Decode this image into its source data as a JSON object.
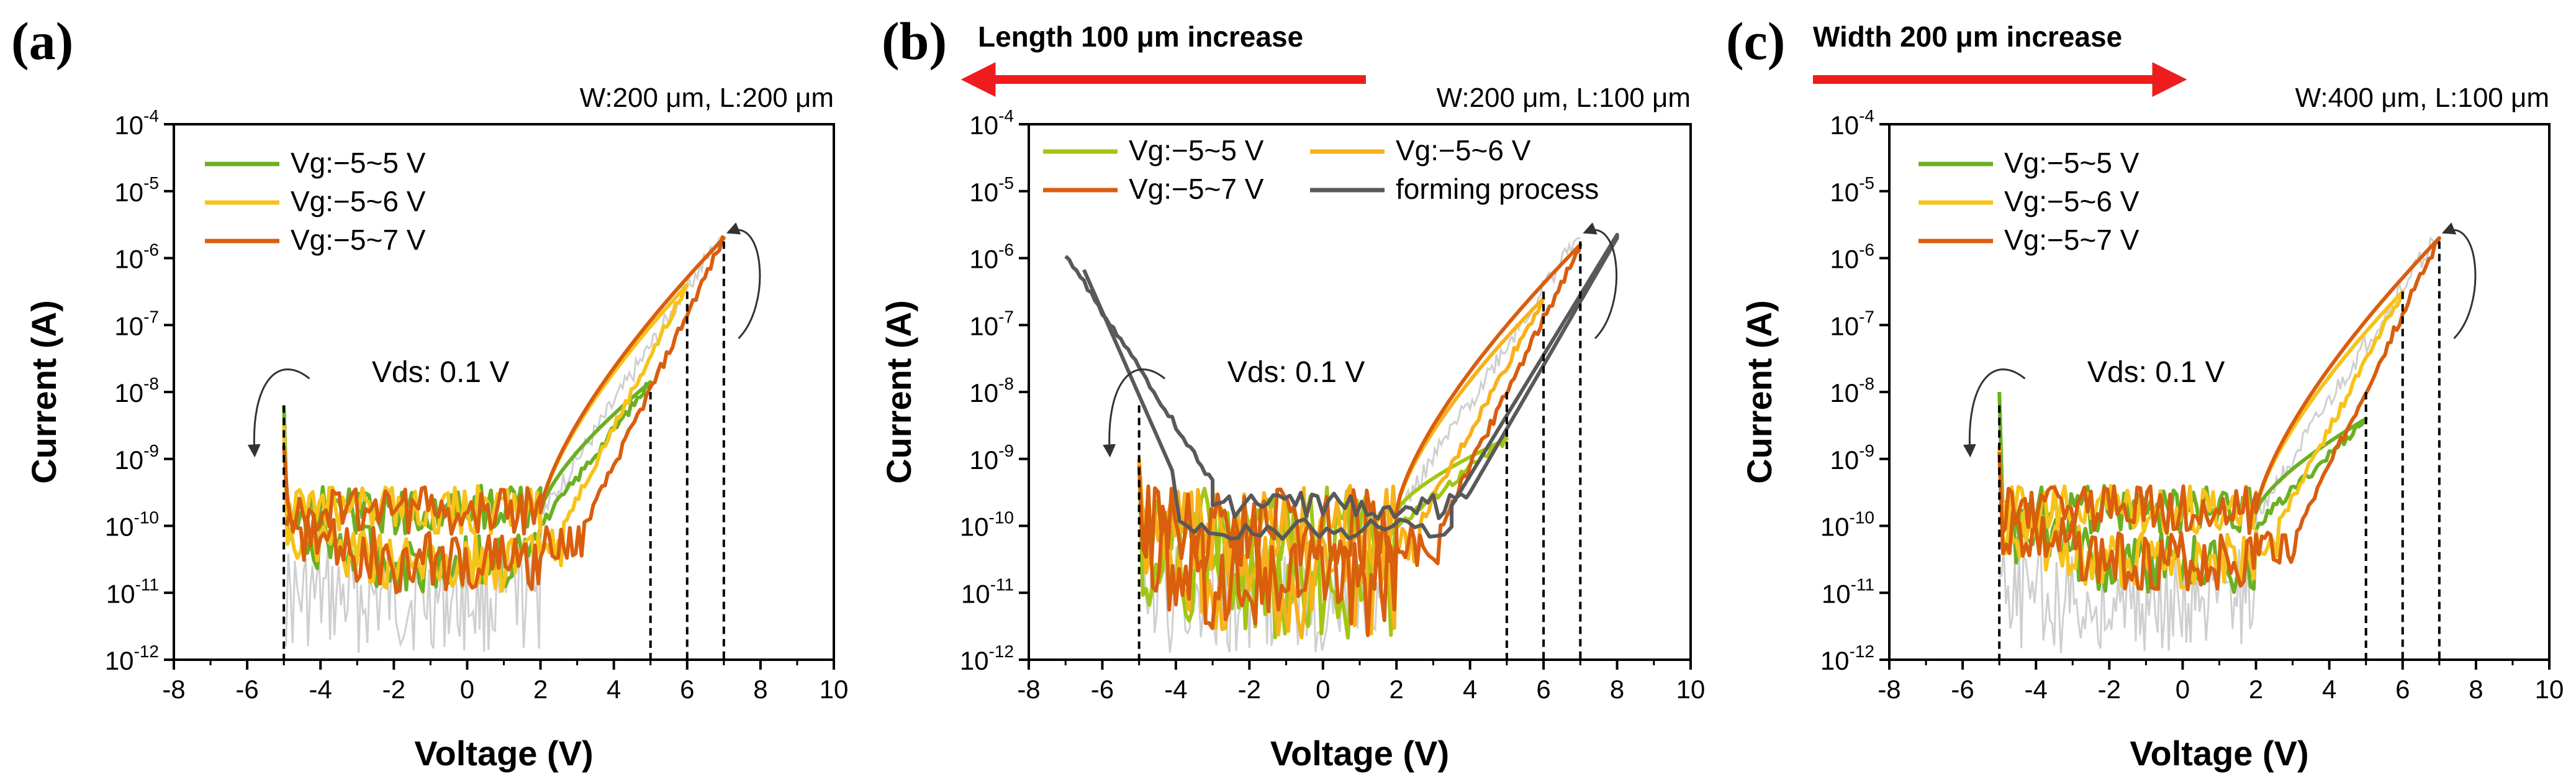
{
  "figure": {
    "arrows": [
      {
        "label": "Length 100 μm increase",
        "direction": "left",
        "color": "#ee1c1c"
      },
      {
        "label": "Width 200 μm increase",
        "direction": "right",
        "color": "#ee1c1c"
      }
    ]
  },
  "chart_data": [
    {
      "type": "line",
      "panel_label": "(a)",
      "condition": "W:200 μm, L:200 μm",
      "annotation": "Vds: 0.1 V",
      "xlabel": "Voltage (V)",
      "ylabel": "Current (A)",
      "xlim": [
        -8,
        10
      ],
      "ylim_exponent": [
        -12,
        -4
      ],
      "x_ticks": [
        -8,
        -6,
        -4,
        -2,
        0,
        2,
        4,
        6,
        8,
        10
      ],
      "y_ticks": [
        -12,
        -11,
        -10,
        -9,
        -8,
        -7,
        -6,
        -5,
        -4
      ],
      "y_tick_base": "10",
      "grid": false,
      "legend_position": "upper-left",
      "vlines": [
        -5,
        5,
        6,
        7
      ],
      "series": [
        {
          "name": "Vg:−5~5 V",
          "color": "#6ab023",
          "vmax": 5,
          "imax_exp": -7.85,
          "ineg_exp": -8.2
        },
        {
          "name": "Vg:−5~6 V",
          "color": "#f7c31a",
          "vmax": 6,
          "imax_exp": -6.4,
          "ineg_exp": -8.5
        },
        {
          "name": "Vg:−5~7 V",
          "color": "#d95e0e",
          "vmax": 7,
          "imax_exp": -5.7,
          "ineg_exp": -8.8
        }
      ]
    },
    {
      "type": "line",
      "panel_label": "(b)",
      "condition": "W:200 μm, L:100 μm",
      "annotation": "Vds: 0.1 V",
      "xlabel": "Voltage (V)",
      "ylabel": "Current (A)",
      "xlim": [
        -8,
        10
      ],
      "ylim_exponent": [
        -12,
        -4
      ],
      "x_ticks": [
        -8,
        -6,
        -4,
        -2,
        0,
        2,
        4,
        6,
        8,
        10
      ],
      "y_ticks": [
        -12,
        -11,
        -10,
        -9,
        -8,
        -7,
        -6,
        -5,
        -4
      ],
      "y_tick_base": "10",
      "grid": false,
      "legend_position": "upper-left",
      "vlines": [
        -5,
        5,
        6,
        7
      ],
      "series": [
        {
          "name": "Vg:−5~5 V",
          "color": "#a3c613",
          "vmax": 5,
          "imax_exp": -8.7,
          "ineg_exp": -9.0
        },
        {
          "name": "Vg:−5~6 V",
          "color": "#f7b21a",
          "vmax": 6,
          "imax_exp": -6.6,
          "ineg_exp": -9.0
        },
        {
          "name": "Vg:−5~7 V",
          "color": "#d95e0e",
          "vmax": 7,
          "imax_exp": -5.8,
          "ineg_exp": -9.1
        },
        {
          "name": "forming process",
          "color": "#595959",
          "vmax": 8,
          "imax_exp": -5.65,
          "ineg_exp": -5.9
        }
      ]
    },
    {
      "type": "line",
      "panel_label": "(c)",
      "condition": "W:400 μm, L:100 μm",
      "annotation": "Vds: 0.1 V",
      "xlabel": "Voltage (V)",
      "ylabel": "Current (A)",
      "xlim": [
        -8,
        10
      ],
      "ylim_exponent": [
        -12,
        -4
      ],
      "x_ticks": [
        -8,
        -6,
        -4,
        -2,
        0,
        2,
        4,
        6,
        8,
        10
      ],
      "y_ticks": [
        -12,
        -11,
        -10,
        -9,
        -8,
        -7,
        -6,
        -5,
        -4
      ],
      "y_tick_base": "10",
      "grid": false,
      "legend_position": "upper-left",
      "vlines": [
        -5,
        5,
        6,
        7
      ],
      "series": [
        {
          "name": "Vg:−5~5 V",
          "color": "#6ab023",
          "vmax": 5,
          "imax_exp": -8.4,
          "ineg_exp": -8.0
        },
        {
          "name": "Vg:−5~6 V",
          "color": "#f7c31a",
          "vmax": 6,
          "imax_exp": -6.5,
          "ineg_exp": -8.8
        },
        {
          "name": "Vg:−5~7 V",
          "color": "#d95e0e",
          "vmax": 7,
          "imax_exp": -5.7,
          "ineg_exp": -8.9
        }
      ]
    }
  ]
}
